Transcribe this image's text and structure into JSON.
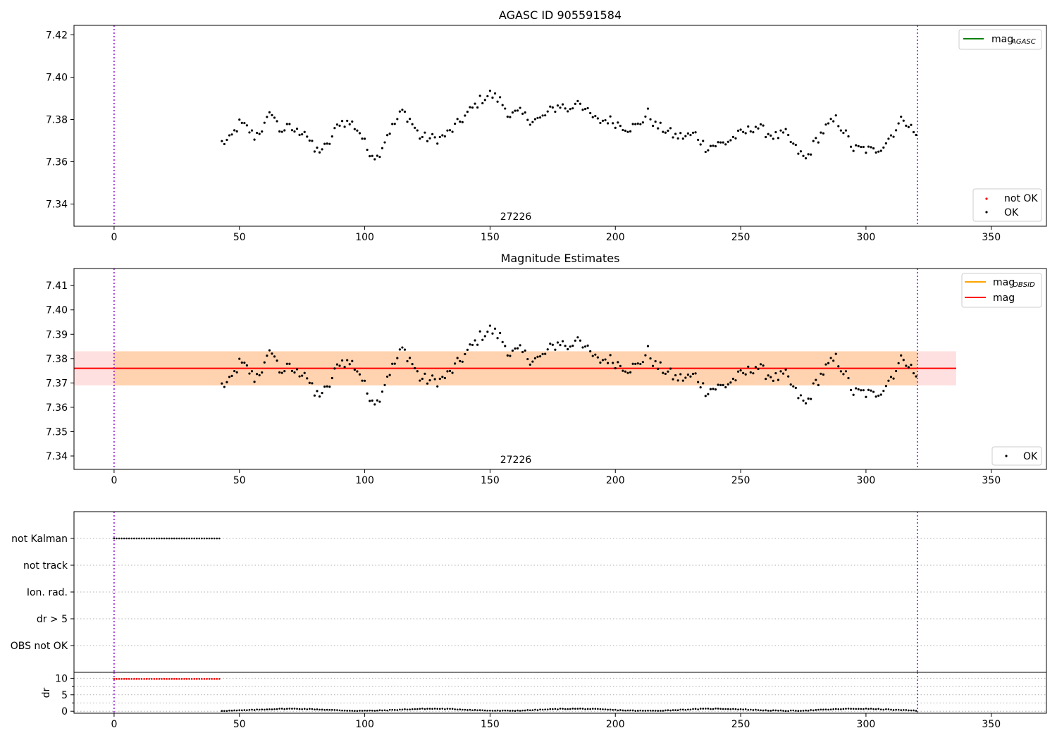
{
  "chart_data": [
    {
      "type": "scatter",
      "title": "AGASC ID 905591584",
      "obsid_label": "27226",
      "xlabel": "",
      "ylabel": "",
      "xlim": [
        -16,
        372
      ],
      "ylim": [
        7.3295,
        7.4245
      ],
      "xticks": [
        0,
        50,
        100,
        150,
        200,
        250,
        300,
        350
      ],
      "yticks": [
        7.34,
        7.36,
        7.38,
        7.4,
        7.42
      ],
      "ytick_labels": [
        "7.34",
        "7.36",
        "7.38",
        "7.40",
        "7.42"
      ],
      "vlines_x": [
        0,
        320.5
      ],
      "legend_top": {
        "placement": "top-right",
        "entries": [
          {
            "label_base": "mag",
            "label_sub": "AGASC",
            "color": "#008000"
          }
        ]
      },
      "legend_bottom": {
        "placement": "bottom-right",
        "entries": [
          {
            "label": "not OK",
            "color": "#ff0000"
          },
          {
            "label": "OK",
            "color": "#000000"
          }
        ]
      },
      "series": [
        {
          "name": "OK",
          "color": "#000000"
        }
      ]
    },
    {
      "type": "scatter",
      "title": "Magnitude Estimates",
      "obsid_label": "27226",
      "xlabel": "",
      "ylabel": "",
      "xlim": [
        -16,
        372
      ],
      "ylim": [
        7.3345,
        7.417
      ],
      "xticks": [
        0,
        50,
        100,
        150,
        200,
        250,
        300,
        350
      ],
      "yticks": [
        7.34,
        7.35,
        7.36,
        7.37,
        7.38,
        7.39,
        7.4,
        7.41
      ],
      "ytick_labels": [
        "7.34",
        "7.35",
        "7.36",
        "7.37",
        "7.38",
        "7.39",
        "7.40",
        "7.41"
      ],
      "vlines_x": [
        0,
        320.5
      ],
      "mag_line": 7.376,
      "band_mag": [
        7.369,
        7.383
      ],
      "band_obsid": [
        7.369,
        7.383
      ],
      "band_x": [
        -16,
        336
      ],
      "legend_top": {
        "placement": "top-right",
        "entries": [
          {
            "label_base": "mag",
            "label_sub": "OBSID",
            "color": "#ffa500"
          },
          {
            "label": "mag",
            "color": "#ff0000"
          }
        ]
      },
      "legend_bottom": {
        "placement": "bottom-right",
        "entries": [
          {
            "label": "OK",
            "color": "#000000"
          }
        ]
      },
      "series": [
        {
          "name": "OK",
          "color": "#000000"
        }
      ]
    },
    {
      "type": "scatter",
      "title": "",
      "xlim": [
        -16,
        372
      ],
      "xticks": [
        0,
        50,
        100,
        150,
        200,
        250,
        300,
        350
      ],
      "categories": [
        "not Kalman",
        "not track",
        "Ion. rad.",
        "dr > 5",
        "OBS not OK"
      ],
      "vlines_x": [
        0,
        320.5
      ],
      "flag_series": [
        {
          "name": "not Kalman",
          "x_range": [
            0,
            42.5
          ],
          "step": 1,
          "color": "#000000"
        }
      ]
    },
    {
      "type": "scatter",
      "title": "",
      "ylabel": "dr",
      "xlim": [
        -16,
        372
      ],
      "ylim": [
        -0.6,
        11.8
      ],
      "xticks": [
        0,
        50,
        100,
        150,
        200,
        250,
        300,
        350
      ],
      "yticks": [
        0,
        5,
        10
      ],
      "ytick_labels": [
        "0",
        "5",
        "10"
      ],
      "vlines_x": [
        0,
        320.5
      ],
      "series": [
        {
          "name": "not OK",
          "color": "#ff0000",
          "x_range": [
            0,
            42.5
          ],
          "value": 9.8
        },
        {
          "name": "OK",
          "color": "#000000",
          "x_range": [
            43,
            320.5
          ],
          "value_range": [
            0.0,
            1.2
          ]
        }
      ]
    }
  ]
}
